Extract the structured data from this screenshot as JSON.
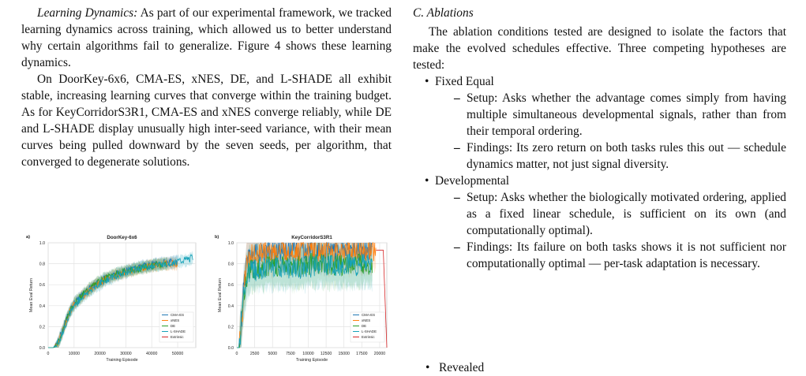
{
  "left": {
    "para1_label": "Learning Dynamics:",
    "para1_text": " As part of our experimental framework, we tracked learning dynamics across training, which allowed us to better understand why certain algorithms fail to generalize. Figure 4 shows these learning dynamics.",
    "para2_text": "On DoorKey-6x6, CMA-ES, xNES, DE, and L-SHADE all exhibit stable, increasing learning curves that converge within the training budget. As for KeyCorridorS3R1, CMA-ES and xNES converge reliably, while DE and L-SHADE display unusually high inter-seed variance, with their mean curves being pulled downward by the seven seeds, per algorithm, that converged to degenerate solutions."
  },
  "right": {
    "section_title": "C.  Ablations",
    "intro": "The ablation conditions tested are designed to isolate the factors that make the evolved schedules effective. Three competing hypotheses are tested:",
    "items": [
      {
        "label": "Fixed Equal",
        "sub": [
          "Setup: Asks whether the advantage comes simply from having multiple simultaneous developmental signals, rather than from their temporal ordering.",
          "Findings: Its zero return on both tasks rules this out — schedule dynamics matter, not just signal diversity."
        ]
      },
      {
        "label": "Developmental",
        "sub": [
          "Setup: Asks whether the biologically motivated ordering, applied as a fixed linear schedule, is sufficient on its own (and computationally optimal).",
          "Findings: Its failure on both tasks shows it is not sufficient nor computationally optimal — per-task adaptation is necessary."
        ]
      }
    ],
    "clipped_item": "Revealed"
  },
  "colors": {
    "CMA-ES": "#1f77b4",
    "xNES": "#ff7f0e",
    "DE": "#2ca02c",
    "L-SHADE": "#17a2b8",
    "Extrinsic": "#d62728"
  },
  "chart_data": [
    {
      "type": "line",
      "panel_label": "a)",
      "title": "DoorKey-6x6",
      "xlabel": "Training Episode",
      "ylabel": "Mean Eval Return",
      "xlim": [
        0,
        57000
      ],
      "ylim": [
        0,
        1.0
      ],
      "xticks": [
        0,
        10000,
        20000,
        30000,
        40000,
        50000
      ],
      "yticks": [
        0.0,
        0.2,
        0.4,
        0.6,
        0.8,
        1.0
      ],
      "grid": true,
      "legend_position": "lower-right",
      "series": [
        {
          "name": "CMA-ES",
          "x": [
            0,
            2000,
            4000,
            6000,
            8000,
            10000,
            14000,
            18000,
            22000,
            26000,
            30000,
            34000,
            38000,
            42000,
            46000,
            50000
          ],
          "y": [
            0,
            0.0,
            0.06,
            0.2,
            0.34,
            0.42,
            0.52,
            0.6,
            0.66,
            0.7,
            0.73,
            0.76,
            0.78,
            0.8,
            0.81,
            0.82
          ]
        },
        {
          "name": "xNES",
          "x": [
            0,
            2000,
            4000,
            6000,
            8000,
            10000,
            14000,
            18000,
            22000,
            26000,
            30000,
            34000,
            38000,
            42000,
            46000,
            50000
          ],
          "y": [
            0,
            0.0,
            0.05,
            0.18,
            0.32,
            0.41,
            0.51,
            0.59,
            0.65,
            0.69,
            0.72,
            0.75,
            0.77,
            0.79,
            0.8,
            0.8
          ]
        },
        {
          "name": "DE",
          "x": [
            0,
            2000,
            4000,
            6000,
            8000,
            10000,
            14000,
            18000,
            22000,
            26000,
            30000,
            34000,
            38000,
            42000,
            46000
          ],
          "y": [
            0,
            0.0,
            0.05,
            0.19,
            0.33,
            0.42,
            0.52,
            0.6,
            0.66,
            0.7,
            0.73,
            0.75,
            0.77,
            0.79,
            0.8
          ]
        },
        {
          "name": "L-SHADE",
          "x": [
            0,
            2000,
            4000,
            6000,
            8000,
            10000,
            14000,
            18000,
            22000,
            26000,
            30000,
            34000,
            38000,
            42000,
            46000,
            50000,
            54000,
            56000
          ],
          "y": [
            0,
            0.0,
            0.05,
            0.17,
            0.31,
            0.4,
            0.5,
            0.58,
            0.64,
            0.68,
            0.72,
            0.75,
            0.77,
            0.79,
            0.8,
            0.82,
            0.84,
            0.86
          ]
        },
        {
          "name": "Extrinsic",
          "x": [],
          "y": []
        }
      ]
    },
    {
      "type": "line",
      "panel_label": "b)",
      "title": "KeyCorridorS3R1",
      "xlabel": "Training Episode",
      "ylabel": "Mean Eval Return",
      "xlim": [
        0,
        21000
      ],
      "ylim": [
        0,
        1.0
      ],
      "xticks": [
        0,
        2500,
        5000,
        7500,
        10000,
        12500,
        15000,
        17500,
        20000
      ],
      "yticks": [
        0.0,
        0.2,
        0.4,
        0.6,
        0.8,
        1.0
      ],
      "grid": true,
      "legend_position": "lower-right",
      "series": [
        {
          "name": "CMA-ES",
          "x": [
            0,
            300,
            700,
            1000,
            1400,
            1800,
            3000,
            5000,
            8000,
            11000,
            14000,
            17000,
            19000
          ],
          "y": [
            0,
            0.0,
            0.3,
            0.6,
            0.82,
            0.9,
            0.92,
            0.93,
            0.93,
            0.94,
            0.93,
            0.94,
            0.94
          ]
        },
        {
          "name": "xNES",
          "x": [
            0,
            300,
            700,
            1000,
            1400,
            1800,
            3000,
            5000,
            8000,
            11000,
            14000,
            17000,
            19500
          ],
          "y": [
            0,
            0.0,
            0.28,
            0.58,
            0.8,
            0.88,
            0.91,
            0.92,
            0.92,
            0.93,
            0.92,
            0.93,
            0.93
          ]
        },
        {
          "name": "DE",
          "x": [
            0,
            300,
            700,
            1000,
            1400,
            1800,
            3000,
            5000,
            8000,
            11000,
            14000,
            17000,
            19000
          ],
          "y": [
            0,
            0.0,
            0.25,
            0.5,
            0.68,
            0.74,
            0.76,
            0.78,
            0.77,
            0.8,
            0.79,
            0.8,
            0.8
          ]
        },
        {
          "name": "L-SHADE",
          "x": [
            0,
            300,
            700,
            1000,
            1400,
            1800,
            3000,
            5000,
            8000,
            11000,
            14000,
            17000,
            19000
          ],
          "y": [
            0,
            0.0,
            0.24,
            0.5,
            0.66,
            0.73,
            0.75,
            0.77,
            0.76,
            0.78,
            0.78,
            0.79,
            0.79
          ]
        },
        {
          "name": "Extrinsic",
          "x": [
            19500,
            20000,
            20500,
            21000
          ],
          "y": [
            0.93,
            0.93,
            0.93,
            0.0
          ]
        }
      ]
    }
  ]
}
